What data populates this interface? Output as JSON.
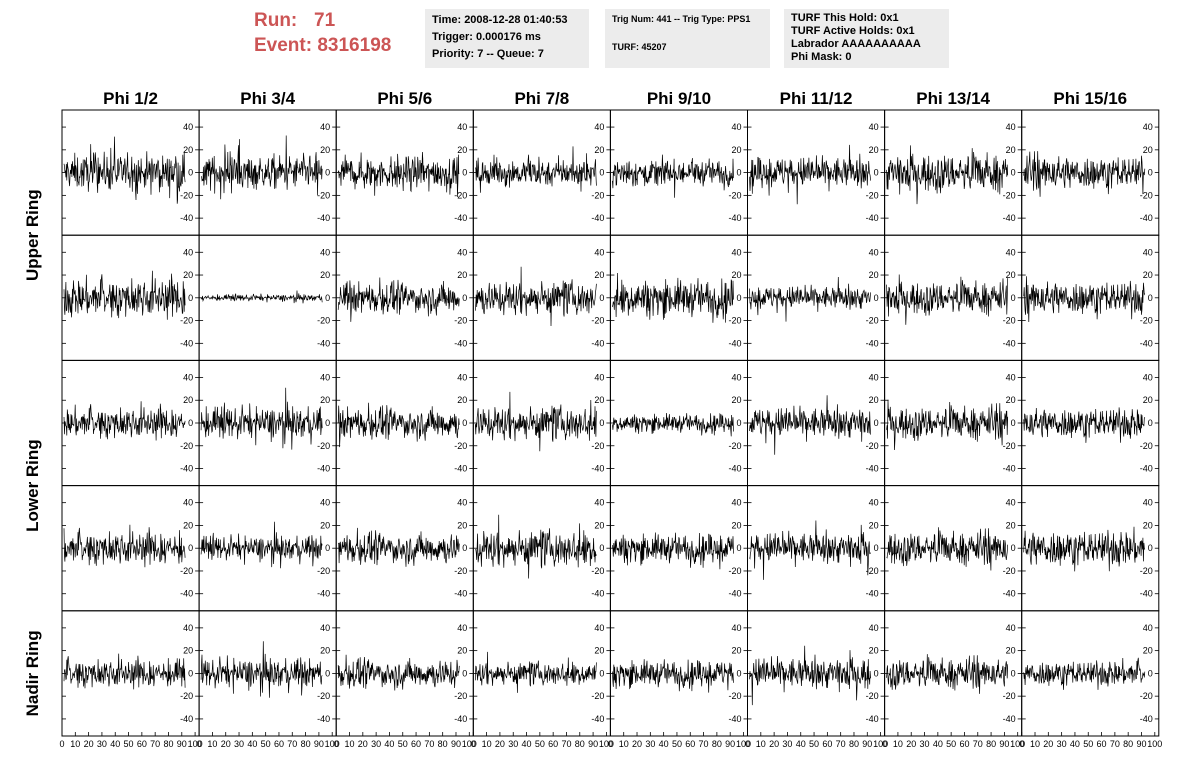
{
  "header": {
    "run_label": "Run:",
    "run_value": "71",
    "event_label": "Event:",
    "event_value": "8316198",
    "time_box": [
      "Time: 2008-12-28 01:40:53",
      "Trigger: 0.000176 ms",
      "Priority: 7 -- Queue: 7"
    ],
    "trig_box": [
      "Trig Num: 441 -- Trig Type: PPS1",
      "",
      "TURF: 45207"
    ],
    "turf_box": [
      "TURF This Hold: 0x1",
      "TURF Active Holds: 0x1",
      "Labrador AAAAAAAAAA",
      "Phi Mask: 0"
    ],
    "colors": {
      "run_text": "#cc5555",
      "box_bg": "#ececec"
    }
  },
  "chart_data": {
    "type": "line",
    "columns": [
      "Phi 1/2",
      "Phi 3/4",
      "Phi 5/6",
      "Phi 7/8",
      "Phi 9/10",
      "Phi 11/12",
      "Phi 13/14",
      "Phi 15/16"
    ],
    "rows": [
      "Upper Ring",
      "",
      "Lower Ring",
      "",
      "Nadir Ring"
    ],
    "y_ticks": [
      40,
      20,
      0,
      -20,
      -40
    ],
    "ylim": [
      -55,
      55
    ],
    "x_ticks": [
      "0",
      "10",
      "20",
      "30",
      "40",
      "50",
      "60",
      "70",
      "80",
      "90",
      "100"
    ],
    "xlim": [
      0,
      100
    ],
    "num_samples": 260,
    "panel_amplitudes": [
      [
        14,
        13,
        13,
        11,
        10,
        12,
        14,
        13
      ],
      [
        15,
        2.5,
        12,
        13,
        14,
        9,
        12,
        13
      ],
      [
        12,
        12,
        12,
        13,
        7,
        12,
        12,
        12
      ],
      [
        13,
        9,
        12,
        14,
        11,
        12,
        12,
        14
      ],
      [
        11,
        11,
        11,
        9,
        10,
        12,
        11,
        10
      ]
    ]
  }
}
